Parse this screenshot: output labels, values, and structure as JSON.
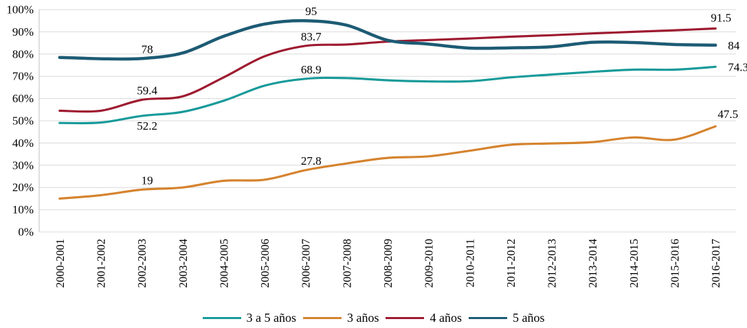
{
  "chart_data": {
    "type": "line",
    "title": "",
    "xlabel": "",
    "ylabel": "",
    "ylim": [
      0,
      100
    ],
    "grid": "horizontal",
    "legend_position": "bottom",
    "y_ticks": [
      "0%",
      "10%",
      "20%",
      "30%",
      "40%",
      "50%",
      "60%",
      "70%",
      "80%",
      "90%",
      "100%"
    ],
    "categories": [
      "2000-2001",
      "2001-2002",
      "2002-2003",
      "2003-2004",
      "2004-2005",
      "2005-2006",
      "2006-2007",
      "2007-2008",
      "2008-2009",
      "2009-2010",
      "2010-2011",
      "2011-2012",
      "2012-2013",
      "2013-2014",
      "2014-2015",
      "2015-2016",
      "2016-2017"
    ],
    "series": [
      {
        "name": "3 a 5 años",
        "color": "#189A9A",
        "smooth": true,
        "values": [
          49,
          49.2,
          52.2,
          54,
          59,
          65.8,
          68.9,
          69.2,
          68.2,
          67.7,
          67.8,
          69.5,
          70.8,
          72,
          73,
          73,
          74.3
        ],
        "point_labels": [
          {
            "index": 2,
            "text": "52.2",
            "position": "below"
          },
          {
            "index": 6,
            "text": "68.9",
            "position": "above"
          },
          {
            "index": 16,
            "text": "74.3",
            "position": "right"
          }
        ]
      },
      {
        "name": "3 años",
        "color": "#D5832E",
        "smooth": true,
        "values": [
          15,
          16.5,
          19,
          20,
          23,
          23.5,
          27.8,
          30.8,
          33.3,
          34,
          36.5,
          39.2,
          39.8,
          40.4,
          42.5,
          41.5,
          47.5
        ],
        "point_labels": [
          {
            "index": 2,
            "text": "19",
            "position": "above"
          },
          {
            "index": 6,
            "text": "27.8",
            "position": "above"
          },
          {
            "index": 16,
            "text": "47.5",
            "position": "above",
            "dx": 10,
            "dy": -4
          }
        ]
      },
      {
        "name": "4 años",
        "color": "#9E1B30",
        "smooth": true,
        "values": [
          54.5,
          54.5,
          59.4,
          61,
          69.5,
          79,
          83.7,
          84.3,
          85.6,
          86.3,
          87,
          87.8,
          88.5,
          89.3,
          90,
          90.7,
          91.5
        ],
        "point_labels": [
          {
            "index": 2,
            "text": "59.4",
            "position": "above"
          },
          {
            "index": 6,
            "text": "83.7",
            "position": "above"
          },
          {
            "index": 16,
            "text": "91.5",
            "position": "above",
            "dx": 0,
            "dy": -2
          }
        ]
      },
      {
        "name": "5 años",
        "color": "#1D5B74",
        "smooth": true,
        "values": [
          78.5,
          77.9,
          78,
          80.5,
          88,
          93.5,
          95,
          93,
          86.2,
          84.5,
          82.7,
          82.8,
          83.3,
          85.3,
          85.2,
          84.3,
          84
        ],
        "point_labels": [
          {
            "index": 2,
            "text": "78",
            "position": "above"
          },
          {
            "index": 6,
            "text": "95",
            "position": "above"
          },
          {
            "index": 16,
            "text": "84",
            "position": "right"
          }
        ]
      }
    ]
  },
  "colors": {
    "gridline": "#D9D9D9",
    "axis_line": "#BFBFBF",
    "tick_text": "#000000",
    "label_text": "#000000"
  }
}
